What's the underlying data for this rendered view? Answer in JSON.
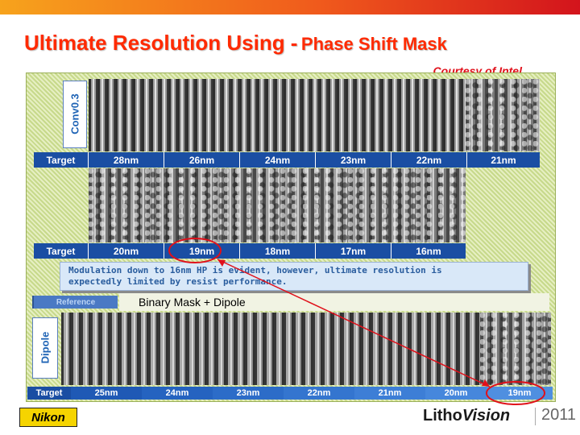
{
  "slide": {
    "title_big": "Ultimate Resolution Using -",
    "title_small": "Phase Shift Mask",
    "courtesy": "Courtesy of Intel"
  },
  "conv": {
    "label": "Conv0.3",
    "row1": {
      "target": "Target",
      "values": [
        "28nm",
        "26nm",
        "24nm",
        "23nm",
        "22nm",
        "21nm"
      ]
    },
    "row2": {
      "target": "Target",
      "values": [
        "20nm",
        "19nm",
        "18nm",
        "17nm",
        "16nm"
      ]
    },
    "highlighted": "19nm"
  },
  "note": {
    "line1": "Modulation down to 16nm HP is evident, however, ultimate resolution is",
    "line2": "expectedly limited by resist performance."
  },
  "reference": {
    "tab": "Reference",
    "caption": "Binary Mask + Dipole"
  },
  "dipole": {
    "label": "Dipole",
    "target": "Target",
    "values": [
      "25nm",
      "24nm",
      "23nm",
      "22nm",
      "21nm",
      "20nm",
      "19nm"
    ],
    "highlighted": "19nm"
  },
  "footer": {
    "brand": "Nikon",
    "litho": "Litho",
    "vision": "Vision",
    "year": "2011"
  },
  "colors": {
    "title": "#ff2a00",
    "courtesy": "#e0101a",
    "target_bar": "#1a4ea3",
    "highlight_ellipse": "#e0101a"
  }
}
